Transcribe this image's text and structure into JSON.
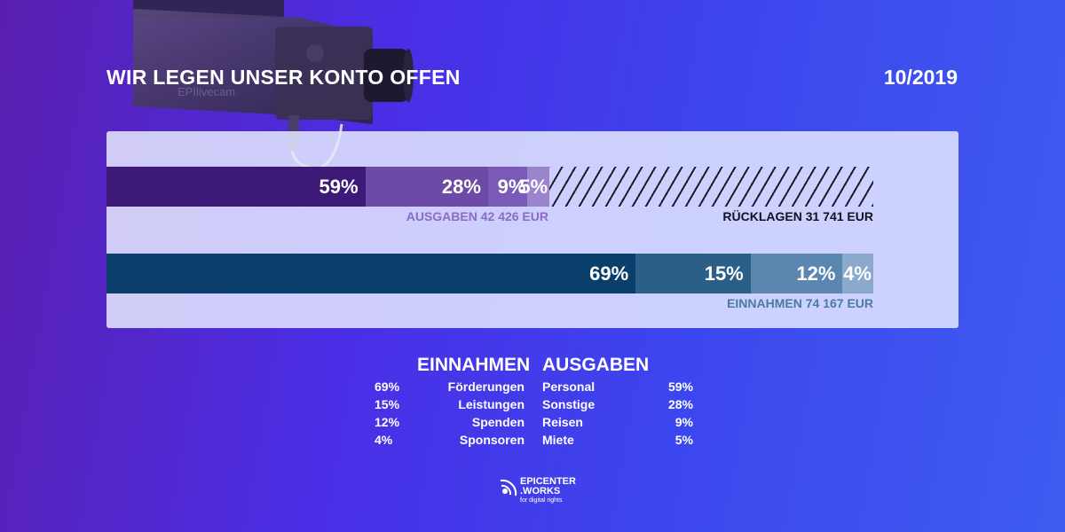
{
  "header": {
    "title": "WIR LEGEN UNSER KONTO OFFEN",
    "date": "10/2019"
  },
  "camera": {
    "watermark": "EPIlivecam"
  },
  "chart_data": [
    {
      "type": "bar",
      "name": "Ausgaben",
      "segments": [
        {
          "label": "59%",
          "value": 59
        },
        {
          "label": "28%",
          "value": 28
        },
        {
          "label": "9%",
          "value": 9
        },
        {
          "label": "5%",
          "value": 5
        }
      ],
      "total_label": "AUSGABEN 42 426 EUR",
      "amount_eur": 42426,
      "reserve_label": "RÜCKLAGEN  31 741 EUR",
      "reserve_eur": 31741,
      "colors": [
        "#3d1a78",
        "#6d4aa5",
        "#7a5ab8",
        "#9a85cc"
      ]
    },
    {
      "type": "bar",
      "name": "Einnahmen",
      "segments": [
        {
          "label": "69%",
          "value": 69
        },
        {
          "label": "15%",
          "value": 15
        },
        {
          "label": "12%",
          "value": 12
        },
        {
          "label": "4%",
          "value": 4
        }
      ],
      "total_label": "EINNAHMEN 74 167 EUR",
      "amount_eur": 74167,
      "colors": [
        "#0b3f6b",
        "#2c5f88",
        "#5a86b0",
        "#8aa9cc"
      ]
    }
  ],
  "legend": {
    "income_title": "EINNAHMEN",
    "expense_title": "AUSGABEN",
    "income": [
      {
        "pct": "69%",
        "name": "Förderungen"
      },
      {
        "pct": "15%",
        "name": "Leistungen"
      },
      {
        "pct": "12%",
        "name": "Spenden"
      },
      {
        "pct": "4%",
        "name": "Sponsoren"
      }
    ],
    "expense": [
      {
        "name": "Personal",
        "pct": "59%"
      },
      {
        "name": "Sonstige",
        "pct": "28%"
      },
      {
        "name": "Reisen",
        "pct": "9%"
      },
      {
        "name": "Miete",
        "pct": "5%"
      }
    ]
  },
  "logo": {
    "line1": "EPICENTER",
    "line2": ".WORKS",
    "tagline": "for digital rights"
  }
}
